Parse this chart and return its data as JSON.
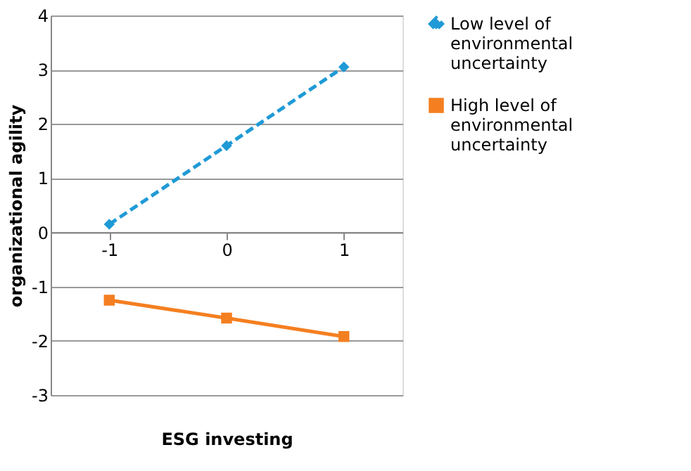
{
  "chart_data": {
    "type": "line",
    "xlabel": "ESG investing",
    "ylabel": "organizational  agility",
    "categories": [
      "-1",
      "0",
      "1"
    ],
    "series": [
      {
        "name": "Low level of environmental uncertainty",
        "color": "#1f9ad6",
        "values": [
          0.15,
          1.6,
          3.05
        ],
        "marker": "diamond",
        "line_style": "dashed"
      },
      {
        "name": "High level of environmental uncertainty",
        "color": "#f47f20",
        "values": [
          -1.25,
          -1.58,
          -1.92
        ],
        "marker": "square",
        "line_style": "solid"
      }
    ],
    "ylim": [
      -3,
      4
    ],
    "yticks": [
      -3,
      -2,
      -1,
      0,
      1,
      2,
      3,
      4
    ],
    "grid": "y",
    "legend": "right"
  }
}
